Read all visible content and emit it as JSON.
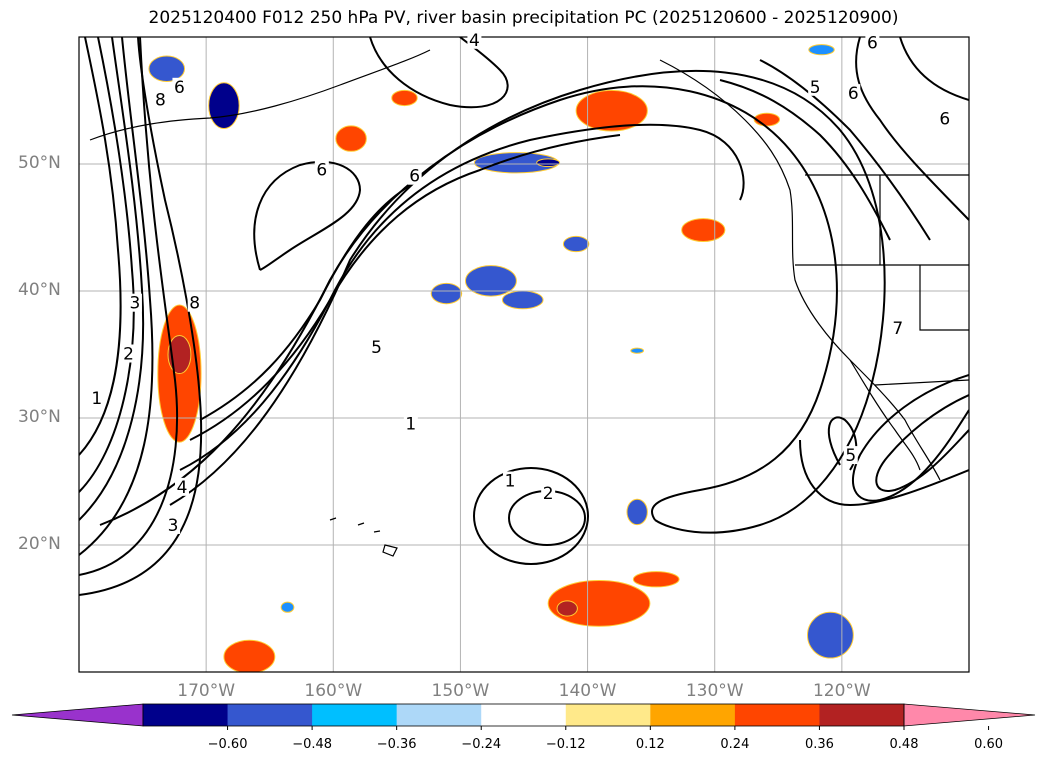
{
  "title": "2025120400 F012 250 hPa PV, river basin precipitation PC (2025120600 - 2025120900)",
  "map": {
    "lon_range": [
      -180,
      -110
    ],
    "lat_range": [
      10,
      60
    ],
    "grid": true,
    "lat_ticks": [
      {
        "value": 20,
        "label": "20°N"
      },
      {
        "value": 30,
        "label": "30°N"
      },
      {
        "value": 40,
        "label": "40°N"
      },
      {
        "value": 50,
        "label": "50°N"
      }
    ],
    "lon_ticks": [
      {
        "value": -170,
        "label": "170°W"
      },
      {
        "value": -160,
        "label": "160°W"
      },
      {
        "value": -150,
        "label": "150°W"
      },
      {
        "value": -140,
        "label": "140°W"
      },
      {
        "value": -130,
        "label": "130°W"
      },
      {
        "value": -120,
        "label": "120°W"
      }
    ],
    "contour_labels": [
      {
        "text": "1",
        "lon": -146.1,
        "lat": 25.0
      },
      {
        "text": "2",
        "lon": -143.1,
        "lat": 24.0
      },
      {
        "text": "1",
        "lon": -178.6,
        "lat": 31.5
      },
      {
        "text": "2",
        "lon": -176.1,
        "lat": 35.0
      },
      {
        "text": "3",
        "lon": -175.6,
        "lat": 39.0
      },
      {
        "text": "8",
        "lon": -170.9,
        "lat": 39.0
      },
      {
        "text": "5",
        "lon": -156.6,
        "lat": 35.5
      },
      {
        "text": "1",
        "lon": -153.9,
        "lat": 29.5
      },
      {
        "text": "4",
        "lon": -171.9,
        "lat": 24.5
      },
      {
        "text": "3",
        "lon": -172.6,
        "lat": 21.5
      },
      {
        "text": "6",
        "lon": -160.9,
        "lat": 49.5
      },
      {
        "text": "6",
        "lon": -153.6,
        "lat": 49.0
      },
      {
        "text": "8",
        "lon": -173.6,
        "lat": 55.0
      },
      {
        "text": "6",
        "lon": -172.1,
        "lat": 56.0
      },
      {
        "text": "4",
        "lon": -148.9,
        "lat": 59.7
      },
      {
        "text": "5",
        "lon": -122.1,
        "lat": 56.0
      },
      {
        "text": "6",
        "lon": -119.1,
        "lat": 55.5
      },
      {
        "text": "6",
        "lon": -117.6,
        "lat": 59.5
      },
      {
        "text": "6",
        "lon": -111.9,
        "lat": 53.5
      },
      {
        "text": "5",
        "lon": -119.3,
        "lat": 27.0
      },
      {
        "text": "7",
        "lon": -115.6,
        "lat": 37.0
      }
    ],
    "precip_regions": [
      {
        "lon": -168.6,
        "lat": 54.6,
        "rx": 1.2,
        "ry": 1.8,
        "color": "#00008b"
      },
      {
        "lon": -173.1,
        "lat": 57.5,
        "rx": 1.4,
        "ry": 1.0,
        "color": "#3557cf"
      },
      {
        "lon": -121.6,
        "lat": 59.0,
        "rx": 1.0,
        "ry": 0.4,
        "color": "#1e90ff"
      },
      {
        "lon": -138.1,
        "lat": 54.2,
        "rx": 2.8,
        "ry": 1.6,
        "color": "#ff4500"
      },
      {
        "lon": -125.9,
        "lat": 53.5,
        "rx": 1.0,
        "ry": 0.5,
        "color": "#ff4500"
      },
      {
        "lon": -158.6,
        "lat": 52.0,
        "rx": 1.2,
        "ry": 1.0,
        "color": "#ff4500"
      },
      {
        "lon": -154.4,
        "lat": 55.2,
        "rx": 1.0,
        "ry": 0.6,
        "color": "#ff4500"
      },
      {
        "lon": -145.6,
        "lat": 50.1,
        "rx": 3.3,
        "ry": 0.8,
        "color": "#3557cf"
      },
      {
        "lon": -143.1,
        "lat": 50.1,
        "rx": 0.9,
        "ry": 0.3,
        "color": "#00008b"
      },
      {
        "lon": -130.9,
        "lat": 44.8,
        "rx": 1.7,
        "ry": 0.9,
        "color": "#ff4500"
      },
      {
        "lon": -140.9,
        "lat": 43.7,
        "rx": 1.0,
        "ry": 0.6,
        "color": "#3557cf"
      },
      {
        "lon": -151.1,
        "lat": 39.8,
        "rx": 1.2,
        "ry": 0.8,
        "color": "#3557cf"
      },
      {
        "lon": -147.6,
        "lat": 40.8,
        "rx": 2.0,
        "ry": 1.2,
        "color": "#3557cf"
      },
      {
        "lon": -145.1,
        "lat": 39.3,
        "rx": 1.6,
        "ry": 0.7,
        "color": "#3557cf"
      },
      {
        "lon": -172.1,
        "lat": 33.5,
        "rx": 1.7,
        "ry": 5.4,
        "color": "#ff4500"
      },
      {
        "lon": -172.1,
        "lat": 35.0,
        "rx": 0.9,
        "ry": 1.5,
        "color": "#b22222"
      },
      {
        "lon": -136.1,
        "lat": 22.6,
        "rx": 0.8,
        "ry": 1.0,
        "color": "#3557cf"
      },
      {
        "lon": -139.1,
        "lat": 15.4,
        "rx": 4.0,
        "ry": 1.8,
        "color": "#ff4500"
      },
      {
        "lon": -134.6,
        "lat": 17.3,
        "rx": 1.8,
        "ry": 0.6,
        "color": "#ff4500"
      },
      {
        "lon": -141.6,
        "lat": 15.0,
        "rx": 0.8,
        "ry": 0.6,
        "color": "#b22222"
      },
      {
        "lon": -120.9,
        "lat": 12.9,
        "rx": 1.8,
        "ry": 1.8,
        "color": "#3557cf"
      },
      {
        "lon": -166.6,
        "lat": 11.2,
        "rx": 2.0,
        "ry": 1.3,
        "color": "#ff4500"
      },
      {
        "lon": -163.6,
        "lat": 15.1,
        "rx": 0.5,
        "ry": 0.4,
        "color": "#1e90ff"
      },
      {
        "lon": -136.1,
        "lat": 35.3,
        "rx": 0.5,
        "ry": 0.2,
        "color": "#1e90ff"
      }
    ]
  },
  "colorbar": {
    "colors": [
      "#9932cc",
      "#00008b",
      "#3557cf",
      "#00bfff",
      "#add8f8",
      "#ffffff",
      "#ffe98a",
      "#ffa500",
      "#ff4500",
      "#b22222",
      "#ff88aa"
    ],
    "ticks": [
      "−0.60",
      "−0.48",
      "−0.36",
      "−0.24",
      "−0.12",
      "0.12",
      "0.24",
      "0.36",
      "0.48",
      "0.60"
    ]
  }
}
